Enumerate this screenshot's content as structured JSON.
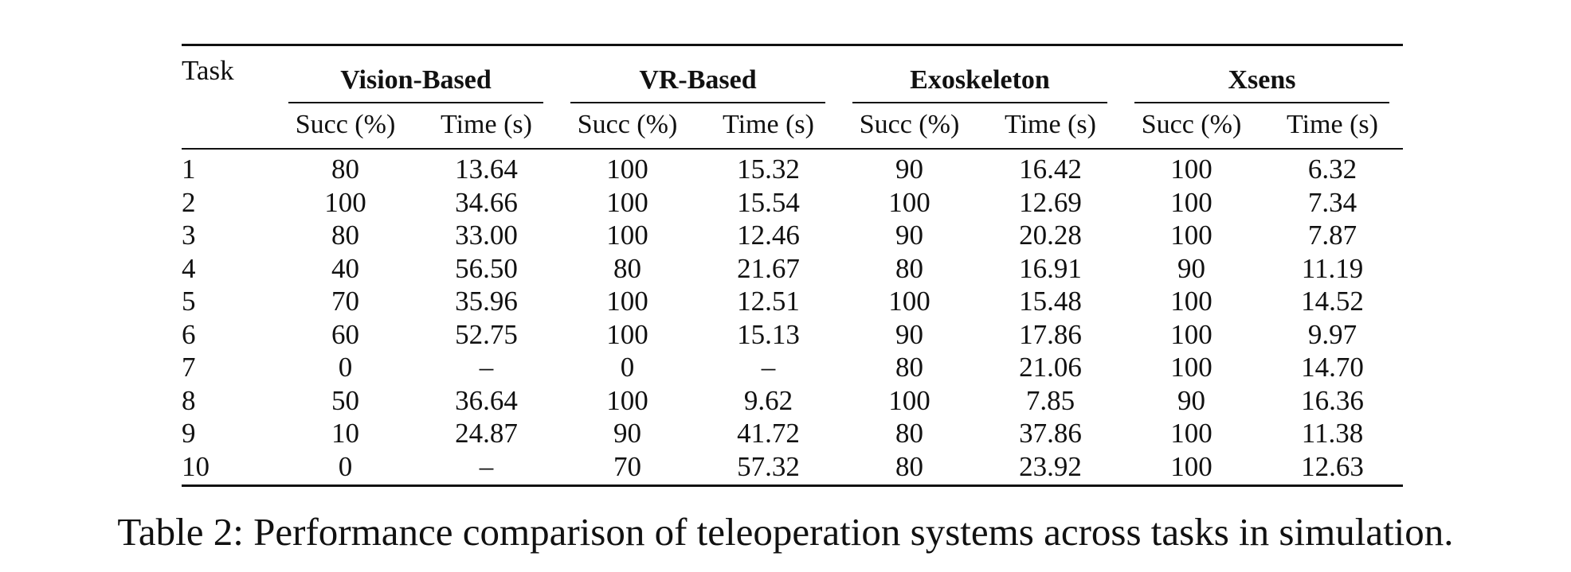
{
  "table": {
    "task_header": "Task",
    "groups": [
      {
        "name": "Vision-Based",
        "succ_label": "Succ (%)",
        "time_label": "Time (s)"
      },
      {
        "name": "VR-Based",
        "succ_label": "Succ (%)",
        "time_label": "Time (s)"
      },
      {
        "name": "Exoskeleton",
        "succ_label": "Succ (%)",
        "time_label": "Time (s)"
      },
      {
        "name": "Xsens",
        "succ_label": "Succ (%)",
        "time_label": "Time (s)"
      }
    ],
    "rows": [
      {
        "task": "1",
        "cells": [
          "80",
          "13.64",
          "100",
          "15.32",
          "90",
          "16.42",
          "100",
          "6.32"
        ]
      },
      {
        "task": "2",
        "cells": [
          "100",
          "34.66",
          "100",
          "15.54",
          "100",
          "12.69",
          "100",
          "7.34"
        ]
      },
      {
        "task": "3",
        "cells": [
          "80",
          "33.00",
          "100",
          "12.46",
          "90",
          "20.28",
          "100",
          "7.87"
        ]
      },
      {
        "task": "4",
        "cells": [
          "40",
          "56.50",
          "80",
          "21.67",
          "80",
          "16.91",
          "90",
          "11.19"
        ]
      },
      {
        "task": "5",
        "cells": [
          "70",
          "35.96",
          "100",
          "12.51",
          "100",
          "15.48",
          "100",
          "14.52"
        ]
      },
      {
        "task": "6",
        "cells": [
          "60",
          "52.75",
          "100",
          "15.13",
          "90",
          "17.86",
          "100",
          "9.97"
        ]
      },
      {
        "task": "7",
        "cells": [
          "0",
          "–",
          "0",
          "–",
          "80",
          "21.06",
          "100",
          "14.70"
        ]
      },
      {
        "task": "8",
        "cells": [
          "50",
          "36.64",
          "100",
          "9.62",
          "100",
          "7.85",
          "90",
          "16.36"
        ]
      },
      {
        "task": "9",
        "cells": [
          "10",
          "24.87",
          "90",
          "41.72",
          "80",
          "37.86",
          "100",
          "11.38"
        ]
      },
      {
        "task": "10",
        "cells": [
          "0",
          "–",
          "70",
          "57.32",
          "80",
          "23.92",
          "100",
          "12.63"
        ]
      }
    ]
  },
  "caption": "Table 2: Performance comparison of teleoperation systems across tasks in simulation."
}
